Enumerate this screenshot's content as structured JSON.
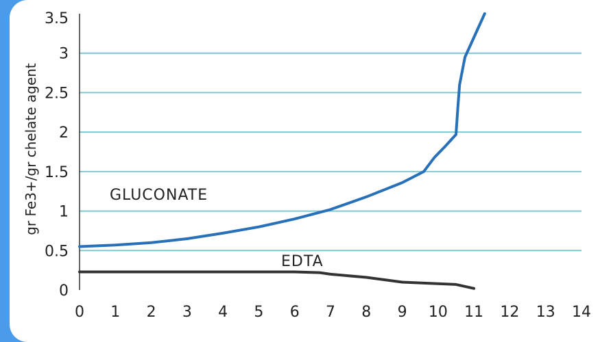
{
  "colors": {
    "background": "#4a9bea",
    "card": "#ffffff",
    "grid": "#7fc8d2",
    "axis": "#333333"
  },
  "chart_data": {
    "type": "line",
    "title": "",
    "xlabel": "",
    "ylabel": "gr Fe3+/gr chelate agent",
    "xlim": [
      0,
      14
    ],
    "ylim": [
      0,
      3.5
    ],
    "x_ticks": [
      "0",
      "1",
      "2",
      "3",
      "4",
      "5",
      "6",
      "7",
      "8",
      "9",
      "10",
      "11",
      "12",
      "13",
      "14"
    ],
    "y_ticks": [
      "0",
      "0.5",
      "1",
      "1.5",
      "2",
      "2.5",
      "3",
      "3.5"
    ],
    "grid": "horizontal",
    "series": [
      {
        "name": "GLUCONATE",
        "color": "#2870b8",
        "x": [
          0,
          1,
          2,
          3,
          4,
          5,
          6,
          7,
          8,
          9,
          9.6,
          9.9,
          10.2,
          10.5,
          10.55,
          10.6,
          10.75,
          11.3
        ],
        "y": [
          0.55,
          0.57,
          0.6,
          0.65,
          0.72,
          0.8,
          0.9,
          1.02,
          1.18,
          1.36,
          1.5,
          1.68,
          1.82,
          1.97,
          2.3,
          2.6,
          2.95,
          3.5
        ]
      },
      {
        "name": "EDTA",
        "color": "#333333",
        "x": [
          0,
          1,
          2,
          3,
          4,
          5,
          6,
          6.7,
          7,
          8,
          9,
          9.5,
          10,
          10.5,
          11
        ],
        "y": [
          0.23,
          0.23,
          0.23,
          0.23,
          0.23,
          0.23,
          0.23,
          0.22,
          0.2,
          0.16,
          0.1,
          0.09,
          0.08,
          0.07,
          0.02
        ]
      }
    ]
  }
}
